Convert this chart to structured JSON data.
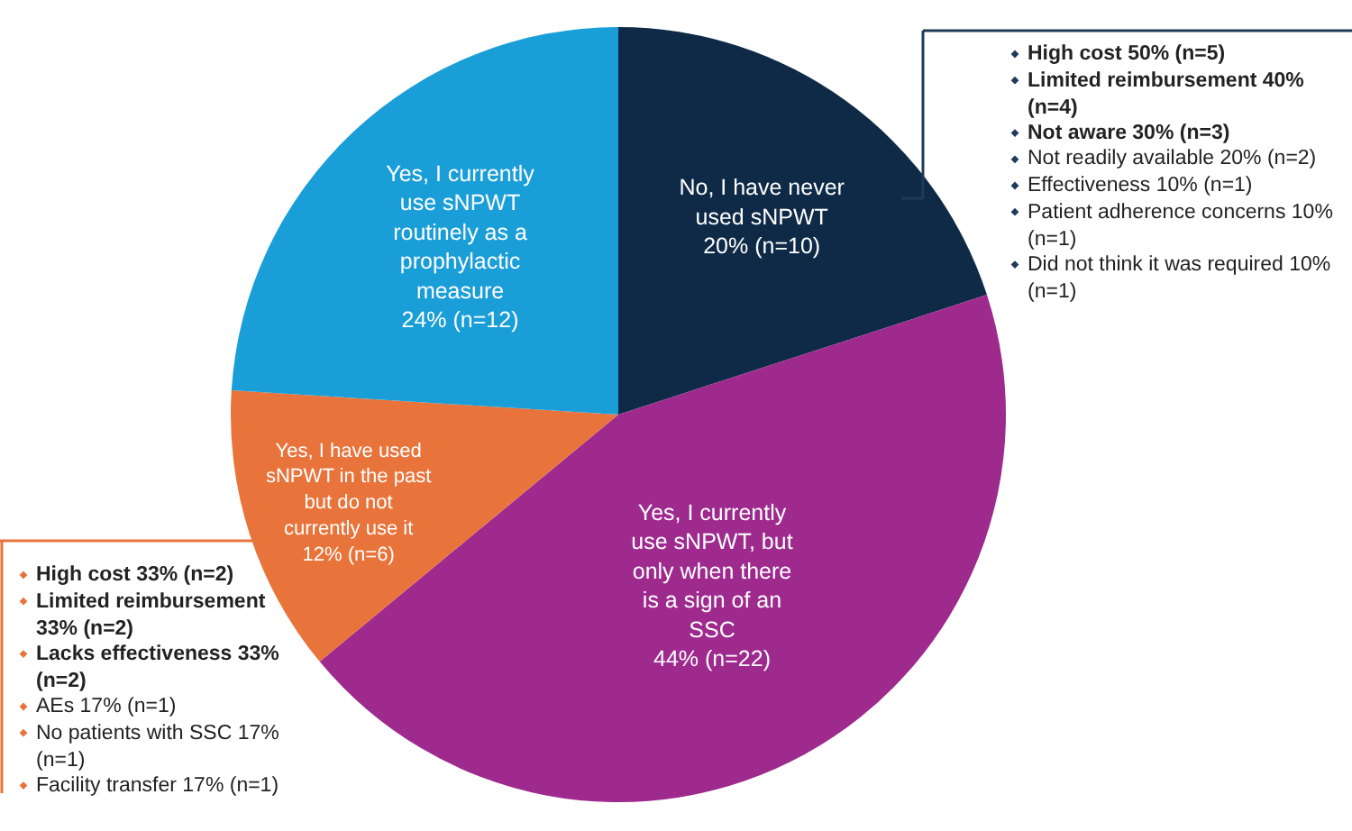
{
  "chart_data": {
    "type": "pie",
    "categories": [
      "No, I have never used sNPWT",
      "Yes, I currently use sNPWT, but only when there is a sign of an SSC",
      "Yes, I have used sNPWT in the past but do not currently use it",
      "Yes, I currently use sNPWT routinely as a prophylactic measure"
    ],
    "values": [
      20,
      44,
      12,
      24
    ],
    "value_labels": [
      "20% (n=10)",
      "44% (n=22)",
      "12% (n=6)",
      "24% (n=12)"
    ],
    "colors": [
      "#0f2a47",
      "#9e2a8e",
      "#e8743b",
      "#1a9ed8"
    ],
    "annotations": [
      "High cost 50% (n=5)",
      "Limited reimbursement 40% (n=4)",
      "Not aware 30% (n=3)",
      "Not readily available 20% (n=2)",
      "Effectiveness 10% (n=1)",
      "Patient adherence concerns 10% (n=1)",
      "Did not think it was required 10% (n=1)",
      "High cost 33% (n=2)",
      "Limited reimbursement 33% (n=2)",
      "Lacks effectiveness 33% (n=2)",
      "AEs 17% (n=1)",
      "No patients with SSC 17% (n=1)",
      "Facility transfer 17% (n=1)"
    ]
  }
}
